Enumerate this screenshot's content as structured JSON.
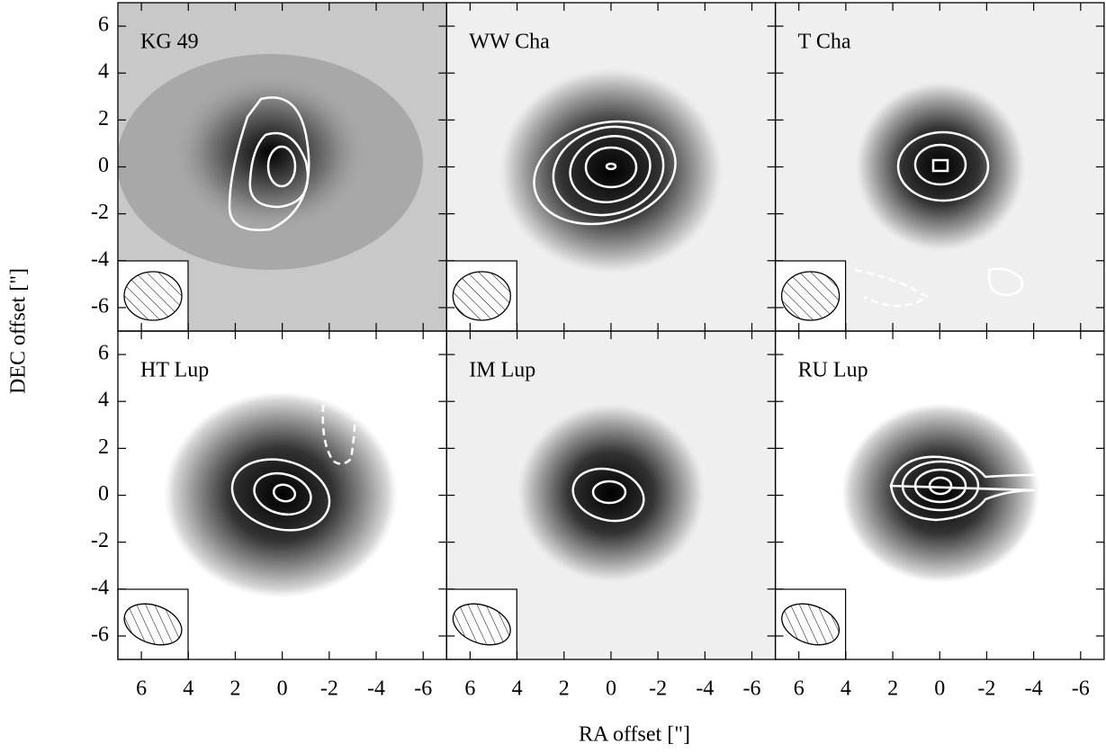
{
  "x_label": "RA offset [\"]",
  "y_label": "DEC offset [\"]",
  "chart_data": [
    {
      "type": "image",
      "title": "KG 49",
      "background": "#c8c8c8",
      "xlim": [
        7,
        -7
      ],
      "ylim": [
        -7,
        7
      ],
      "xticks": [
        6,
        4,
        2,
        0,
        -2,
        -4,
        -6
      ],
      "yticks": [
        -6,
        -4,
        -2,
        0,
        2,
        4,
        6
      ]
    },
    {
      "type": "image",
      "title": "WW Cha",
      "background": "#efefef",
      "xlim": [
        7,
        -7
      ],
      "ylim": [
        -7,
        7
      ],
      "xticks": [
        6,
        4,
        2,
        0,
        -2,
        -4,
        -6
      ],
      "yticks": [
        -6,
        -4,
        -2,
        0,
        2,
        4,
        6
      ]
    },
    {
      "type": "image",
      "title": "T Cha",
      "background": "#efefef",
      "xlim": [
        7,
        -7
      ],
      "ylim": [
        -7,
        7
      ],
      "xticks": [
        6,
        4,
        2,
        0,
        -2,
        -4,
        -6
      ],
      "yticks": [
        -6,
        -4,
        -2,
        0,
        2,
        4,
        6
      ]
    },
    {
      "type": "image",
      "title": "HT Lup",
      "background": "#ffffff",
      "xlim": [
        7,
        -7
      ],
      "ylim": [
        -7,
        7
      ],
      "xticks": [
        6,
        4,
        2,
        0,
        -2,
        -4,
        -6
      ],
      "yticks": [
        -6,
        -4,
        -2,
        0,
        2,
        4,
        6
      ]
    },
    {
      "type": "image",
      "title": "IM Lup",
      "background": "#efefef",
      "xlim": [
        7,
        -7
      ],
      "ylim": [
        -7,
        7
      ],
      "xticks": [
        6,
        4,
        2,
        0,
        -2,
        -4,
        -6
      ],
      "yticks": [
        -6,
        -4,
        -2,
        0,
        2,
        4,
        6
      ]
    },
    {
      "type": "image",
      "title": "RU Lup",
      "background": "#ffffff",
      "xlim": [
        7,
        -7
      ],
      "ylim": [
        -7,
        7
      ],
      "xticks": [
        6,
        4,
        2,
        0,
        -2,
        -4,
        -6
      ],
      "yticks": [
        -6,
        -4,
        -2,
        0,
        2,
        4,
        6
      ]
    }
  ]
}
